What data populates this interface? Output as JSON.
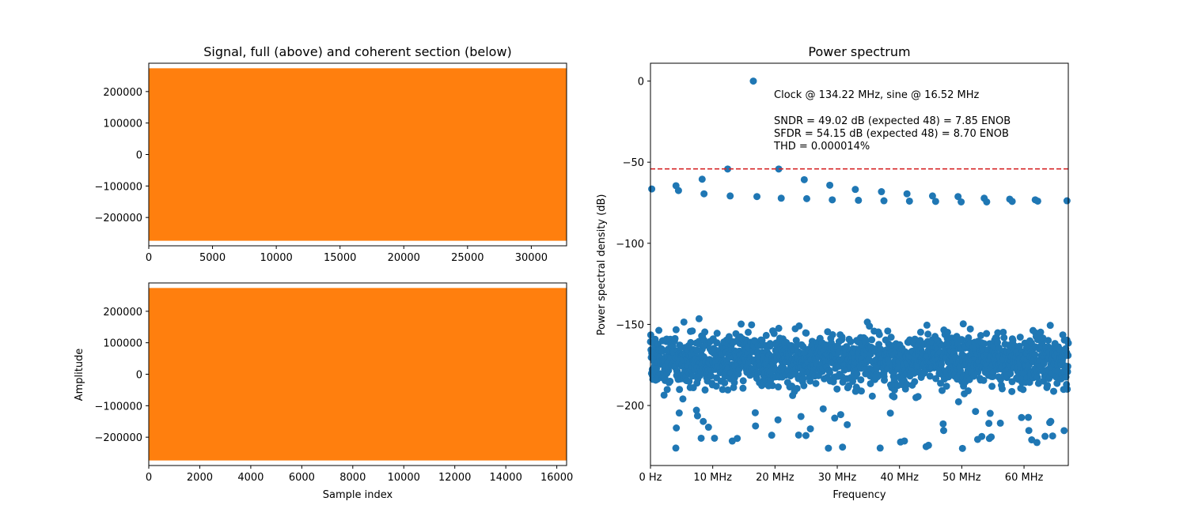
{
  "chart_data": [
    {
      "type": "area",
      "title": "Signal, full (above) and coherent section (below)",
      "xlabel": "",
      "ylabel": "",
      "xlim": [
        0,
        32768
      ],
      "ylim": [
        -290000,
        290000
      ],
      "x_ticks": [
        0,
        5000,
        10000,
        15000,
        20000,
        25000,
        30000
      ],
      "x_tick_labels": [
        "0",
        "5000",
        "10000",
        "15000",
        "20000",
        "25000",
        "30000"
      ],
      "y_ticks": [
        200000,
        100000,
        0,
        -100000,
        -200000
      ],
      "y_tick_labels": [
        "200000",
        "100000",
        "0",
        "−100000",
        "−200000"
      ],
      "series": [
        {
          "envelope_max": 274000,
          "envelope_min": -274000,
          "color": "#ff7f0e"
        }
      ]
    },
    {
      "type": "area",
      "title": "",
      "xlabel": "Sample index",
      "ylabel": "Amplitude",
      "xlim": [
        0,
        16384
      ],
      "ylim": [
        -290000,
        290000
      ],
      "x_ticks": [
        0,
        2000,
        4000,
        6000,
        8000,
        10000,
        12000,
        14000,
        16000
      ],
      "x_tick_labels": [
        "0",
        "2000",
        "4000",
        "6000",
        "8000",
        "10000",
        "12000",
        "14000",
        "16000"
      ],
      "y_ticks": [
        200000,
        100000,
        0,
        -100000,
        -200000
      ],
      "y_tick_labels": [
        "200000",
        "100000",
        "0",
        "−100000",
        "−200000"
      ],
      "series": [
        {
          "envelope_max": 274000,
          "envelope_min": -274000,
          "color": "#ff7f0e"
        }
      ]
    },
    {
      "type": "scatter",
      "title": "Power spectrum",
      "xlabel": "Frequency",
      "ylabel": "Power spectral density (dB)",
      "xlim": [
        0,
        67.11
      ],
      "ylim": [
        -237,
        11
      ],
      "x_ticks": [
        0,
        10,
        20,
        30,
        40,
        50,
        60
      ],
      "x_tick_labels": [
        "0 Hz",
        "10 MHz",
        "20 MHz",
        "30 MHz",
        "40 MHz",
        "50 MHz",
        "60 MHz"
      ],
      "y_ticks": [
        0,
        -50,
        -100,
        -150,
        -200
      ],
      "y_tick_labels": [
        "0",
        "−50",
        "−100",
        "−150",
        "−200"
      ],
      "annotations": [
        "Clock @ 134.22 MHz, sine @ 16.52 MHz",
        "SNDR = 49.02 dB (expected 48) = 7.85 ENOB",
        "SFDR = 54.15 dB (expected 48) = 8.70 ENOB",
        "THD = 0.000014%"
      ],
      "sfdr_line_db": -54.15,
      "point_color": "#1f77b4",
      "line_color": "#d62728",
      "fundamental": {
        "x": 16.52,
        "y": 0
      },
      "spurs": [
        {
          "x": 0.2,
          "y": -66.5
        },
        {
          "x": 4.1,
          "y": -64.5
        },
        {
          "x": 4.5,
          "y": -67.5
        },
        {
          "x": 8.3,
          "y": -60.5
        },
        {
          "x": 8.6,
          "y": -69.5
        },
        {
          "x": 12.4,
          "y": -54.2
        },
        {
          "x": 12.8,
          "y": -70.8
        },
        {
          "x": 17.1,
          "y": -71.2
        },
        {
          "x": 20.6,
          "y": -54.2
        },
        {
          "x": 21.0,
          "y": -72.2
        },
        {
          "x": 24.7,
          "y": -60.8
        },
        {
          "x": 25.1,
          "y": -72.5
        },
        {
          "x": 28.8,
          "y": -64.2
        },
        {
          "x": 29.2,
          "y": -73.2
        },
        {
          "x": 32.9,
          "y": -66.8
        },
        {
          "x": 33.4,
          "y": -73.5
        },
        {
          "x": 37.1,
          "y": -68.2
        },
        {
          "x": 37.5,
          "y": -73.8
        },
        {
          "x": 41.2,
          "y": -69.5
        },
        {
          "x": 41.6,
          "y": -74.0
        },
        {
          "x": 45.3,
          "y": -70.8
        },
        {
          "x": 45.8,
          "y": -74.2
        },
        {
          "x": 49.4,
          "y": -71.2
        },
        {
          "x": 49.9,
          "y": -74.5
        },
        {
          "x": 53.6,
          "y": -72.2
        },
        {
          "x": 54.0,
          "y": -74.5
        },
        {
          "x": 57.7,
          "y": -72.8
        },
        {
          "x": 58.1,
          "y": -74.2
        },
        {
          "x": 61.8,
          "y": -73.2
        },
        {
          "x": 62.2,
          "y": -74.0
        },
        {
          "x": 66.9,
          "y": -73.8
        }
      ],
      "noise_floor": {
        "median_db": -172,
        "typical_range_db": [
          -193,
          -150
        ],
        "min_db": -227,
        "max_db": -128
      }
    }
  ]
}
